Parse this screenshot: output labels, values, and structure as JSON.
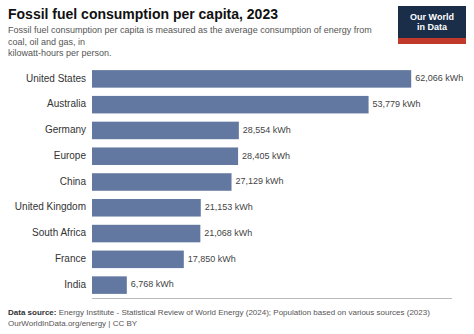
{
  "chart_data": {
    "type": "bar",
    "orientation": "horizontal",
    "title": "Fossil fuel consumption per capita, 2023",
    "subtitle": "Fossil fuel consumption per capita is measured as the average consumption of energy from coal, oil and gas, in\nkilowatt-hours per person.",
    "categories": [
      "India",
      "France",
      "South Africa",
      "United Kingdom",
      "China",
      "Europe",
      "Germany",
      "Australia",
      "United States"
    ],
    "values": [
      6768,
      17850,
      21068,
      21153,
      27129,
      28405,
      28554,
      53779,
      62066
    ],
    "value_labels": [
      "6,768 kWh",
      "17,850 kWh",
      "21,068 kWh",
      "21,153 kWh",
      "27,129 kWh",
      "28,405 kWh",
      "28,554 kWh",
      "53,779 kWh",
      "62,066 kWh"
    ],
    "data_labels": true,
    "color": "#6278a0",
    "xlim": [
      0,
      70000
    ],
    "tick_labels": "y",
    "grid": false,
    "annotations": [
      "Our World\nin Data",
      "Data source:",
      "Energy Institute - Statistical Review of World Energy (2024); Population based on various sources (2023)\nOurWorldInData.org/energy | CC BY"
    ]
  }
}
